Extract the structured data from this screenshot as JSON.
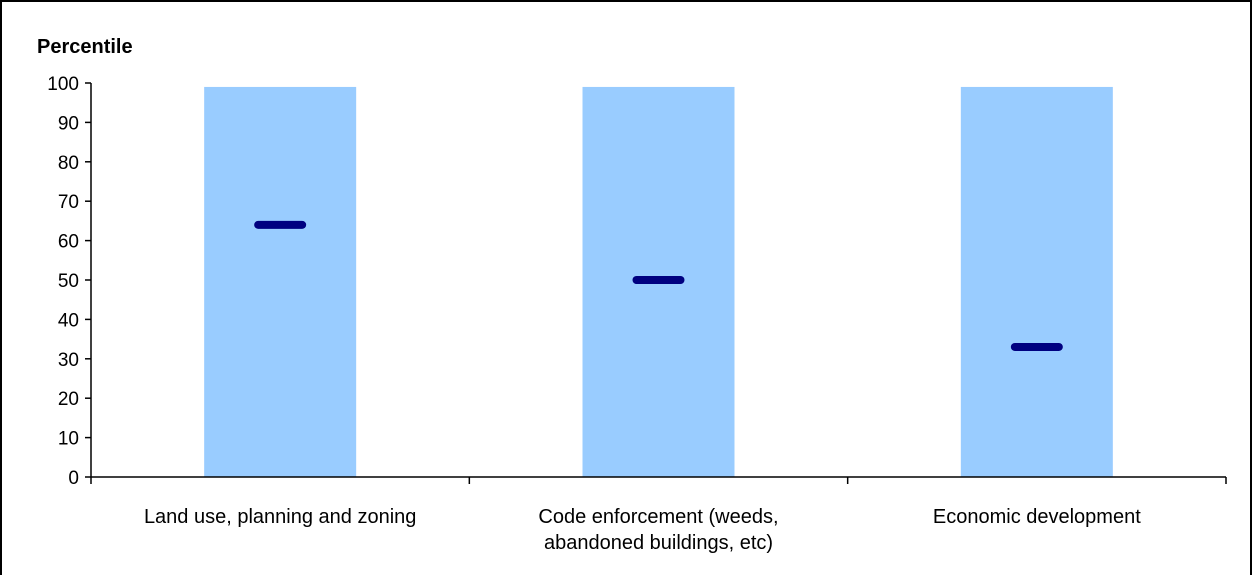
{
  "chart_data": {
    "type": "bar",
    "ylabel": "Percentile",
    "xlabel": "",
    "title": "",
    "ylim": [
      0,
      100
    ],
    "yticks": [
      0,
      10,
      20,
      30,
      40,
      50,
      60,
      70,
      80,
      90,
      100
    ],
    "categories": [
      [
        "Land use, planning and zoning"
      ],
      [
        "Code enforcement (weeds,",
        "abandoned buildings, etc)"
      ],
      [
        "Economic development"
      ]
    ],
    "series": [
      {
        "values": [
          99,
          99,
          99
        ],
        "color": "#99ccff"
      },
      {
        "values": [
          64,
          50,
          33
        ],
        "color": "#000080",
        "marker": "dash"
      }
    ],
    "grid": false,
    "legend": "none"
  }
}
